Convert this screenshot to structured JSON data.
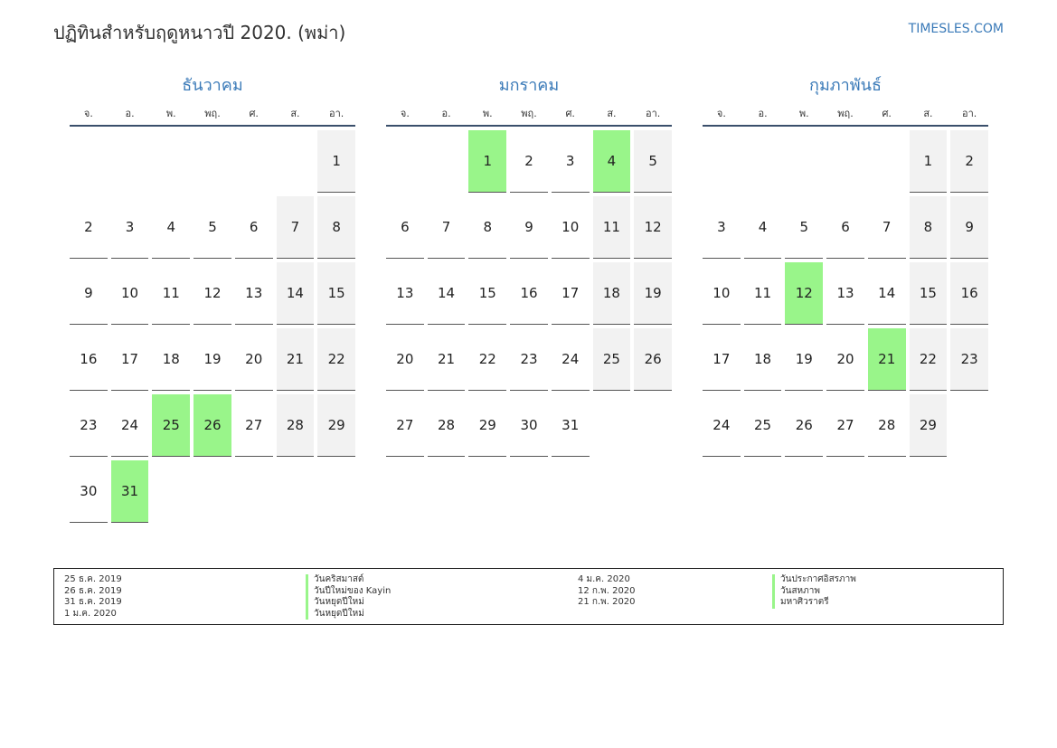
{
  "page": {
    "title": "ปฏิทินสำหรับฤดูหนาวปี 2020. (พม่า)",
    "site": "TIMESLES.COM"
  },
  "colors": {
    "accent": "#3a7ab8",
    "holiday": "#99f58a",
    "weekend": "#f2f2f2"
  },
  "weekdays": [
    "จ.",
    "อ.",
    "พ.",
    "พฤ.",
    "ศ.",
    "ส.",
    "อา."
  ],
  "months": [
    {
      "name": "ธันวาคม",
      "offset": 6,
      "days": 31,
      "holidays": [
        25,
        26,
        31
      ]
    },
    {
      "name": "มกราคม",
      "offset": 2,
      "days": 31,
      "holidays": [
        1,
        4
      ]
    },
    {
      "name": "กุมภาพันธ์",
      "offset": 5,
      "days": 29,
      "holidays": [
        12,
        21
      ]
    }
  ],
  "legend": {
    "left": [
      {
        "date": "25 ธ.ค. 2019",
        "name": "วันคริสมาสต์"
      },
      {
        "date": "26 ธ.ค. 2019",
        "name": "วันปีใหม่ของ Kayin"
      },
      {
        "date": "31 ธ.ค. 2019",
        "name": "วันหยุดปีใหม่"
      },
      {
        "date": "1 ม.ค. 2020",
        "name": "วันหยุดปีใหม่"
      }
    ],
    "right": [
      {
        "date": "4 ม.ค. 2020",
        "name": "วันประกาศอิสรภาพ"
      },
      {
        "date": "12 ก.พ. 2020",
        "name": "วันสหภาพ"
      },
      {
        "date": "21 ก.พ. 2020",
        "name": "มหาศิวราตรี"
      }
    ]
  }
}
